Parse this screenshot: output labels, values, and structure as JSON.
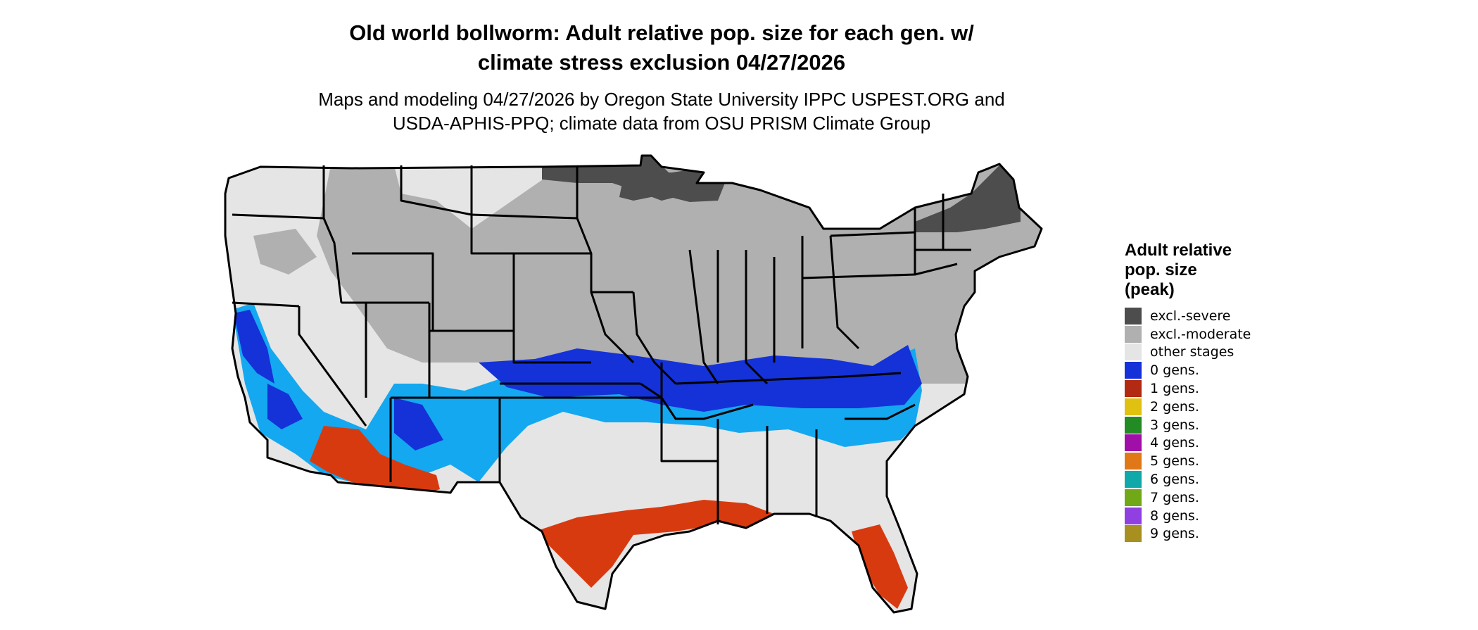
{
  "title_line1": "Old world bollworm: Adult relative pop. size for each gen. w/",
  "title_line2": "climate stress exclusion 04/27/2026",
  "subtitle_line1": "Maps and modeling 04/27/2026 by Oregon State University IPPC USPEST.ORG and",
  "subtitle_line2": "USDA-APHIS-PPQ; climate data from OSU PRISM Climate Group",
  "legend": {
    "title_line1": "Adult relative",
    "title_line2": "pop. size",
    "title_line3": "(peak)",
    "items": [
      {
        "label": "excl.-severe",
        "color": "#4d4d4d"
      },
      {
        "label": "excl.-moderate",
        "color": "#b0b0b0"
      },
      {
        "label": "other stages",
        "color": "#e5e5e5"
      },
      {
        "label": "0 gens.",
        "color": "#1432d8"
      },
      {
        "label": "1 gens.",
        "color": "#b22a12"
      },
      {
        "label": "2 gens.",
        "color": "#e0c010"
      },
      {
        "label": "3 gens.",
        "color": "#238b23"
      },
      {
        "label": "4 gens.",
        "color": "#a010a8"
      },
      {
        "label": "5 gens.",
        "color": "#e07818"
      },
      {
        "label": "6 gens.",
        "color": "#10a8a8"
      },
      {
        "label": "7 gens.",
        "color": "#70a818"
      },
      {
        "label": "8 gens.",
        "color": "#9040e0"
      },
      {
        "label": "9 gens.",
        "color": "#a89020"
      }
    ]
  },
  "map_colors": {
    "other": "#e5e5e5",
    "moderate": "#b0b0b0",
    "severe": "#4d4d4d",
    "zero_gens": "#1432d8",
    "light_blue": "#14a8f0",
    "one_gen": "#d83a10",
    "border": "#000000"
  }
}
